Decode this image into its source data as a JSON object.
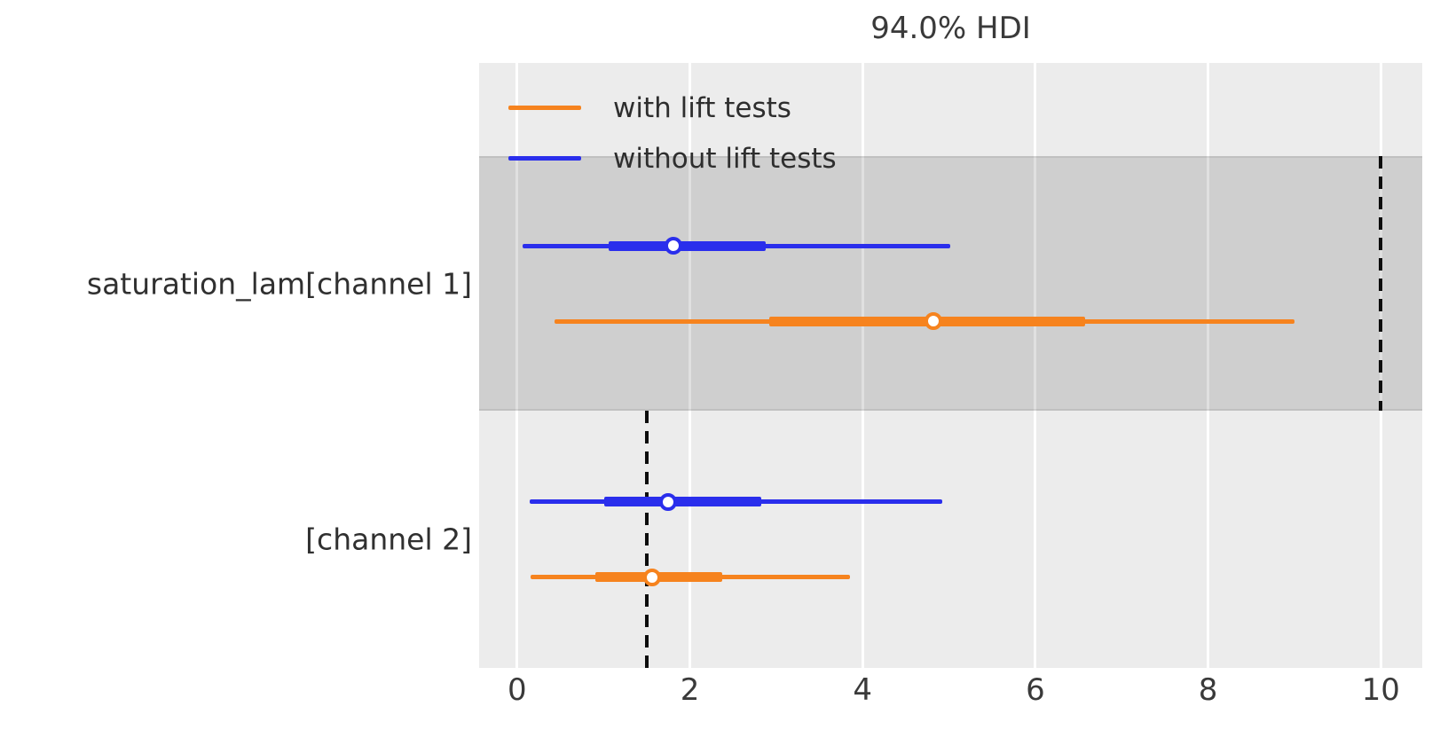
{
  "title": "94.0% HDI",
  "legend": [
    {
      "label": "with lift tests",
      "color": "#f6831e"
    },
    {
      "label": "without lift tests",
      "color": "#2a2eec"
    }
  ],
  "colors": {
    "with_lift_tests": "#f6831e",
    "without_lift_tests": "#2a2eec",
    "plot_background": "#ececec",
    "row_band": "#d6d6d6",
    "gridline": "#ffffff",
    "reference_line": "#0d0d0d"
  },
  "chart_data": {
    "type": "forest",
    "title": "94.0% HDI",
    "hdi_prob": 0.94,
    "xlabel": "",
    "xlim": [
      -0.44,
      10.48
    ],
    "xticks": [
      0,
      2,
      4,
      6,
      8,
      10
    ],
    "xtick_labels": [
      "0",
      "2",
      "4",
      "6",
      "8",
      "10"
    ],
    "grid": "vertical-white",
    "legend_position": "upper-left-inside",
    "rows": [
      {
        "label": "saturation_lam[channel 1]",
        "shaded_band": true,
        "reference_x": 10.0,
        "series": [
          {
            "name": "without lift tests",
            "color": "#2a2eec",
            "hdi_94": [
              0.06,
              5.02
            ],
            "iqr": [
              1.06,
              2.88
            ],
            "median": 1.81
          },
          {
            "name": "with lift tests",
            "color": "#f6831e",
            "hdi_94": [
              0.43,
              9.0
            ],
            "iqr": [
              2.92,
              6.58
            ],
            "median": 4.82
          }
        ]
      },
      {
        "label": "[channel 2]",
        "shaded_band": false,
        "reference_x": 1.5,
        "series": [
          {
            "name": "without lift tests",
            "color": "#2a2eec",
            "hdi_94": [
              0.15,
              4.92
            ],
            "iqr": [
              1.01,
              2.83
            ],
            "median": 1.75
          },
          {
            "name": "with lift tests",
            "color": "#f6831e",
            "hdi_94": [
              0.16,
              3.85
            ],
            "iqr": [
              0.91,
              2.37
            ],
            "median": 1.56
          }
        ]
      }
    ]
  }
}
